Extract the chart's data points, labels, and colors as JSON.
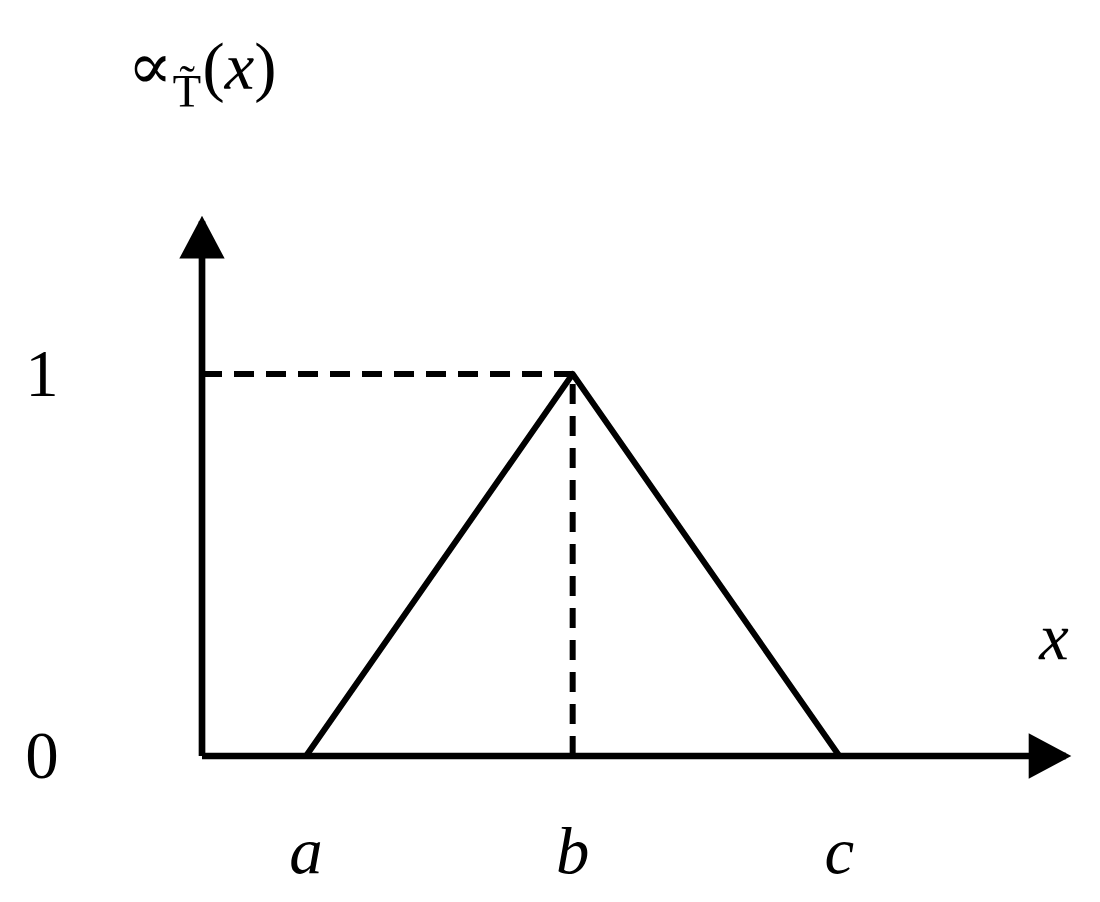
{
  "chart_data": {
    "type": "line",
    "xlabel": "x",
    "ylabel": "∝$_{T̃}$(*x*)",
    "categories": [
      "a",
      "b",
      "c"
    ],
    "values": [
      0,
      1,
      0
    ],
    "color": "#000000",
    "ylim": [
      0,
      1.4
    ],
    "yticks": [
      0,
      1
    ],
    "ref_lines": [
      {
        "axis": "y",
        "value": 1,
        "line_style": "dashed",
        "color": "#000000"
      },
      {
        "axis": "x",
        "value": "b",
        "line_style": "dashed",
        "color": "#000000"
      }
    ]
  }
}
